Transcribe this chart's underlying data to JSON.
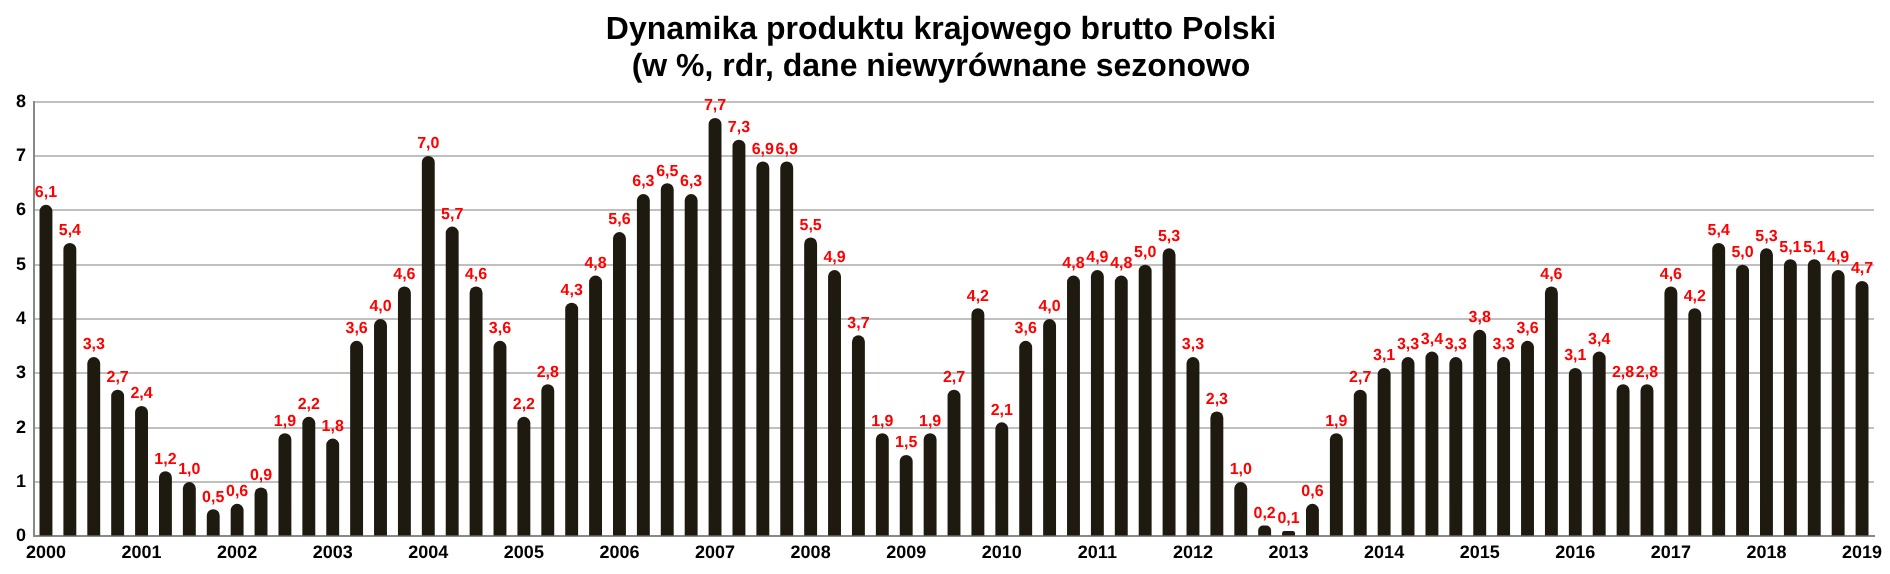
{
  "chart_data": {
    "type": "bar",
    "title": "Dynamika produktu krajowego brutto Polski\n(w %, rdr, dane niewyrównane sezonowo",
    "categories": [
      "2000",
      null,
      null,
      null,
      "2001",
      null,
      null,
      null,
      "2002",
      null,
      null,
      null,
      "2003",
      null,
      null,
      null,
      "2004",
      null,
      null,
      null,
      "2005",
      null,
      null,
      null,
      "2006",
      null,
      null,
      null,
      "2007",
      null,
      null,
      null,
      "2008",
      null,
      null,
      null,
      "2009",
      null,
      null,
      null,
      "2010",
      null,
      null,
      null,
      "2011",
      null,
      null,
      null,
      "2012",
      null,
      null,
      null,
      "2013",
      null,
      null,
      null,
      "2014",
      null,
      null,
      null,
      "2015",
      null,
      null,
      null,
      "2016",
      null,
      null,
      null,
      "2017",
      null,
      null,
      null,
      "2018",
      null,
      null,
      null,
      "2019"
    ],
    "values": [
      6.1,
      5.4,
      3.3,
      2.7,
      2.4,
      1.2,
      1.0,
      0.5,
      0.6,
      0.9,
      1.9,
      2.2,
      1.8,
      3.6,
      4.0,
      4.6,
      7.0,
      5.7,
      4.6,
      3.6,
      2.2,
      2.8,
      4.3,
      4.8,
      5.6,
      6.3,
      6.5,
      6.3,
      7.7,
      7.3,
      6.9,
      6.9,
      5.5,
      4.9,
      3.7,
      1.9,
      1.5,
      1.9,
      2.7,
      4.2,
      2.1,
      3.6,
      4.0,
      4.8,
      4.9,
      4.8,
      5.0,
      5.3,
      3.3,
      2.3,
      1.0,
      0.2,
      0.1,
      0.6,
      1.9,
      2.7,
      3.1,
      3.3,
      3.4,
      3.3,
      3.8,
      3.3,
      3.6,
      4.6,
      3.1,
      3.4,
      2.8,
      2.8,
      4.6,
      4.2,
      5.4,
      5.0,
      5.3,
      5.1,
      5.1,
      4.9,
      4.7
    ],
    "value_labels": [
      "6,1",
      "5,4",
      "3,3",
      "2,7",
      "2,4",
      "1,2",
      "1,0",
      "0,5",
      "0,6",
      "0,9",
      "1,9",
      "2,2",
      "1,8",
      "3,6",
      "4,0",
      "4,6",
      "7,0",
      "5,7",
      "4,6",
      "3,6",
      "2,2",
      "2,8",
      "4,3",
      "4,8",
      "5,6",
      "6,3",
      "6,5",
      "6,3",
      "7,7",
      "7,3",
      "6,9",
      "6,9",
      "5,5",
      "4,9",
      "3,7",
      "1,9",
      "1,5",
      "1,9",
      "2,7",
      "4,2",
      "2,1",
      "3,6",
      "4,0",
      "4,8",
      "4,9",
      "4,8",
      "5,0",
      "5,3",
      "3,3",
      "2,3",
      "1,0",
      "0,2",
      "0,1",
      "0,6",
      "1,9",
      "2,7",
      "3,1",
      "3,3",
      "3,4",
      "3,3",
      "3,8",
      "3,3",
      "3,6",
      "4,6",
      "3,1",
      "3,4",
      "2,8",
      "2,8",
      "4,6",
      "4,2",
      "5,4",
      "5,0",
      "5,3",
      "5,1",
      "5,1",
      "4,9",
      "4,7"
    ],
    "color": "#1f1a10",
    "ylim": [
      0,
      8
    ],
    "yticks": [
      0,
      1,
      2,
      3,
      4,
      5,
      6,
      7,
      8
    ],
    "grid": "y",
    "legend": false
  }
}
